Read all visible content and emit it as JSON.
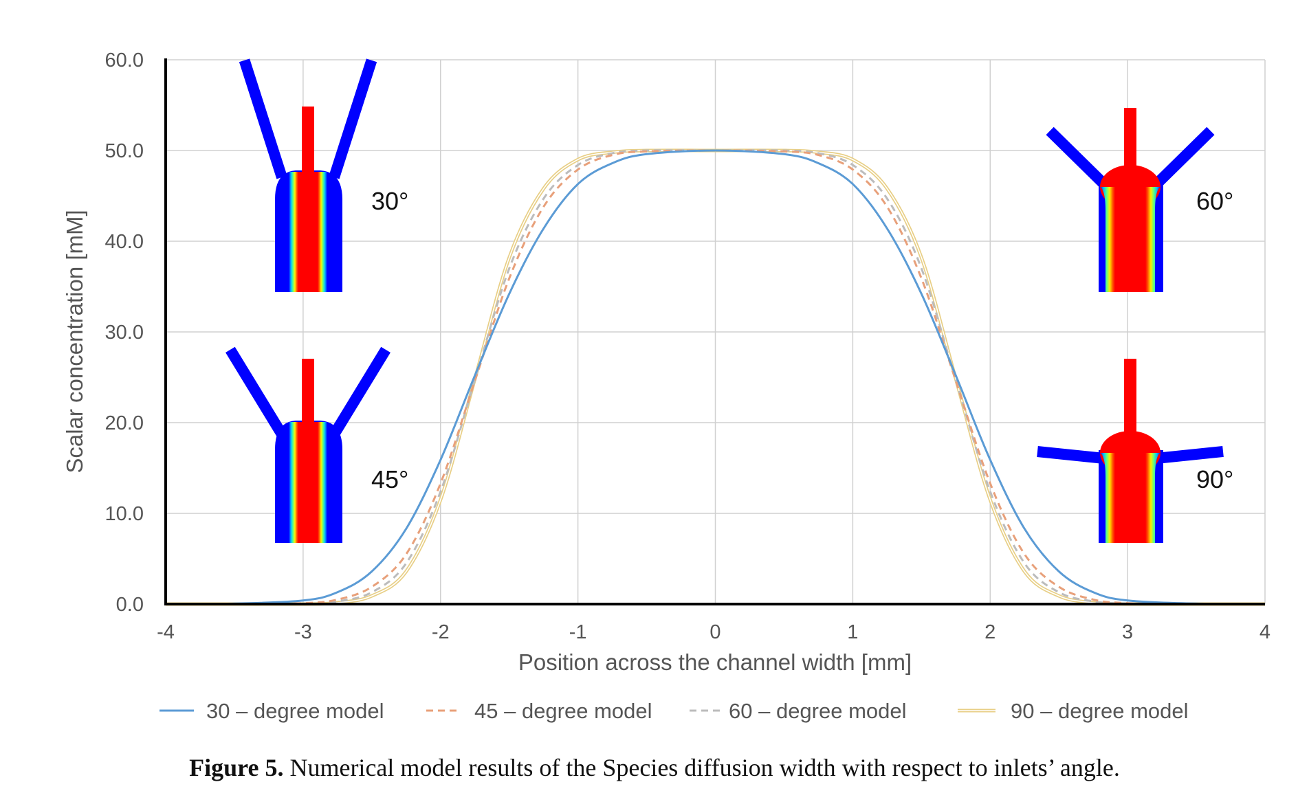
{
  "chart_data": {
    "type": "line",
    "xlabel": "Position across the channel width [mm]",
    "ylabel": "Scalar concentration [mM]",
    "xlim": [
      -4,
      4
    ],
    "ylim": [
      0,
      60
    ],
    "x_ticks": [
      "-4",
      "-3",
      "-2",
      "-1",
      "0",
      "1",
      "2",
      "3",
      "4"
    ],
    "y_ticks": [
      "0.0",
      "10.0",
      "20.0",
      "30.0",
      "40.0",
      "50.0",
      "60.0"
    ],
    "grid": true,
    "legend_position": "bottom",
    "series": [
      {
        "name": "30 – degree model",
        "color": "#5b9bd5",
        "style": "solid",
        "x": [
          -4,
          -3.5,
          -3,
          -2.75,
          -2.5,
          -2.25,
          -2,
          -1.75,
          -1.5,
          -1.25,
          -1,
          -0.75,
          -0.5,
          0,
          0.5,
          0.75,
          1,
          1.25,
          1.5,
          1.75,
          2,
          2.25,
          2.5,
          2.75,
          3,
          3.5,
          4
        ],
        "y": [
          0,
          0.05,
          0.4,
          1.3,
          3.6,
          8.3,
          15.9,
          25.2,
          34.2,
          41.4,
          46.3,
          48.6,
          49.6,
          50,
          49.6,
          48.6,
          46.3,
          41.4,
          34.2,
          25.2,
          15.9,
          8.3,
          3.6,
          1.3,
          0.4,
          0.05,
          0
        ]
      },
      {
        "name": "45 – degree model",
        "color": "#e8a07a",
        "style": "dashed",
        "x": [
          -4,
          -3.5,
          -3,
          -2.75,
          -2.5,
          -2.25,
          -2,
          -1.75,
          -1.5,
          -1.25,
          -1,
          -0.75,
          -0.5,
          0,
          0.5,
          0.75,
          1,
          1.25,
          1.5,
          1.75,
          2,
          2.25,
          2.5,
          2.75,
          3,
          3.5,
          4
        ],
        "y": [
          0,
          0,
          0.1,
          0.5,
          1.9,
          5.5,
          13.3,
          24.6,
          35.9,
          43.8,
          47.9,
          49.5,
          49.9,
          50,
          49.9,
          49.5,
          47.9,
          43.8,
          35.9,
          24.6,
          13.3,
          5.5,
          1.9,
          0.5,
          0.1,
          0,
          0
        ]
      },
      {
        "name": "60 – degree model",
        "color": "#bcbcbc",
        "style": "dashed",
        "x": [
          -4,
          -3.5,
          -3,
          -2.75,
          -2.5,
          -2.25,
          -2,
          -1.75,
          -1.5,
          -1.25,
          -1,
          -0.75,
          -0.5,
          0,
          0.5,
          0.75,
          1,
          1.25,
          1.5,
          1.75,
          2,
          2.25,
          2.5,
          2.75,
          3,
          3.5,
          4
        ],
        "y": [
          0,
          0,
          0.05,
          0.3,
          1.3,
          4.5,
          12.4,
          24.7,
          37.0,
          44.7,
          48.4,
          49.7,
          50,
          50,
          50,
          49.7,
          48.4,
          44.7,
          37.0,
          24.7,
          12.4,
          4.5,
          1.3,
          0.3,
          0.05,
          0,
          0
        ]
      },
      {
        "name": "90 – degree model",
        "color": "#e8cf86",
        "style": "double",
        "x": [
          -4,
          -3.5,
          -3,
          -2.75,
          -2.5,
          -2.25,
          -2,
          -1.75,
          -1.5,
          -1.25,
          -1,
          -0.75,
          -0.5,
          0,
          0.5,
          0.75,
          1,
          1.25,
          1.5,
          1.75,
          2,
          2.25,
          2.5,
          2.75,
          3,
          3.5,
          4
        ],
        "y": [
          0,
          0,
          0,
          0.15,
          0.9,
          3.6,
          11.5,
          24.8,
          38.2,
          45.8,
          49.0,
          49.8,
          50,
          50,
          50,
          49.8,
          49.0,
          45.8,
          38.2,
          24.8,
          11.5,
          3.6,
          0.9,
          0.15,
          0,
          0,
          0
        ]
      }
    ],
    "insets": [
      {
        "label": "30°",
        "angle_deg": 30
      },
      {
        "label": "45°",
        "angle_deg": 45
      },
      {
        "label": "60°",
        "angle_deg": 60
      },
      {
        "label": "90°",
        "angle_deg": 90
      }
    ],
    "inset_colors": {
      "channel": "#0000ff",
      "fluid": "#ff0000"
    }
  },
  "caption": {
    "label": "Figure 5.",
    "text": " Numerical model results of the Species diffusion width with respect to inlets’ angle."
  }
}
